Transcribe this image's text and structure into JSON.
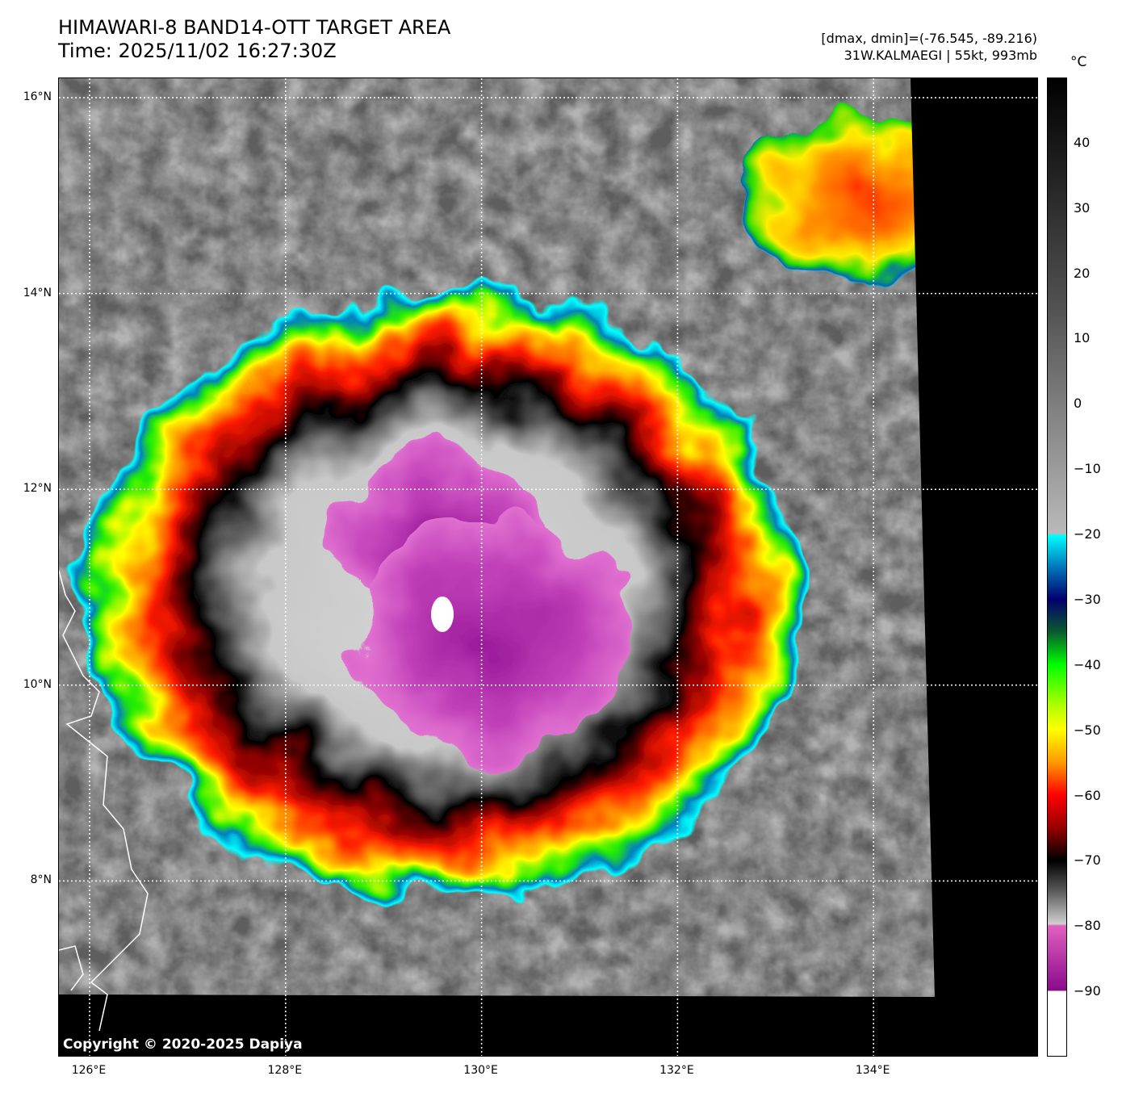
{
  "header": {
    "title": "HIMAWARI-8 BAND14-OTT TARGET AREA",
    "time": "Time: 2025/11/02 16:27:30Z",
    "range": "[dmax, dmin]=(-76.545, -89.216)",
    "storm": "31W.KALMAEGI | 55kt, 993mb"
  },
  "colorbar": {
    "unit": "°C",
    "min": -100,
    "max": 50,
    "ticks": [
      "40",
      "30",
      "20",
      "10",
      "0",
      "−10",
      "−20",
      "−30",
      "−40",
      "−50",
      "−60",
      "−70",
      "−80",
      "−90"
    ],
    "tick_values": [
      40,
      30,
      20,
      10,
      0,
      -10,
      -20,
      -30,
      -40,
      -50,
      -60,
      -70,
      -80,
      -90
    ]
  },
  "map": {
    "lat_labels": [
      "16°N",
      "14°N",
      "12°N",
      "10°N",
      "8°N"
    ],
    "lat_values": [
      16,
      14,
      12,
      10,
      8
    ],
    "lon_labels": [
      "126°E",
      "128°E",
      "130°E",
      "132°E",
      "134°E"
    ],
    "lon_values": [
      126,
      128,
      130,
      132,
      134
    ],
    "copyright": "Copyright © 2020-2025 Dapiya"
  }
}
